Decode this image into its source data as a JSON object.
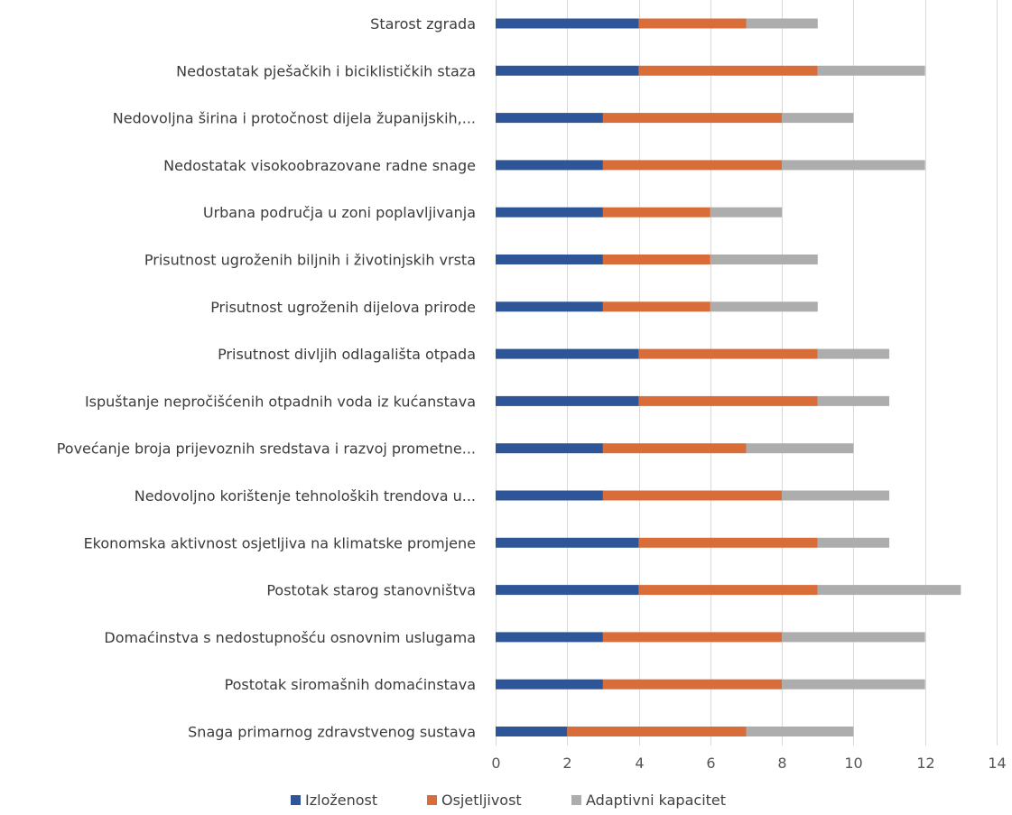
{
  "chart_data": {
    "type": "bar",
    "orientation": "horizontal",
    "stacked": true,
    "categories": [
      "Starost zgrada",
      "Nedostatak pješačkih i biciklističkih staza",
      "Nedovoljna širina i protočnost dijela županijskih,...",
      "Nedostatak visokoobrazovane radne snage",
      "Urbana područja u zoni poplavljivanja",
      "Prisutnost ugroženih biljnih i životinjskih vrsta",
      "Prisutnost ugroženih dijelova prirode",
      "Prisutnost divljih odlagališta otpada",
      "Ispuštanje nepročišćenih otpadnih voda iz kućanstava",
      "Povećanje broja prijevoznih sredstava i razvoj prometne...",
      "Nedovoljno korištenje tehnoloških trendova u...",
      "Ekonomska aktivnost osjetljiva na klimatske promjene",
      "Postotak starog stanovništva",
      "Domaćinstva s nedostupnošću osnovnim uslugama",
      "Postotak siromašnih domaćinstava",
      "Snaga primarnog zdravstvenog sustava"
    ],
    "series": [
      {
        "name": "Izloženost",
        "color": "#2e5597",
        "values": [
          4,
          4,
          3,
          3,
          3,
          3,
          3,
          4,
          4,
          3,
          3,
          4,
          4,
          3,
          3,
          2
        ]
      },
      {
        "name": "Osjetljivost",
        "color": "#d86d3a",
        "values": [
          3,
          5,
          5,
          5,
          3,
          3,
          3,
          5,
          5,
          4,
          5,
          5,
          5,
          5,
          5,
          5
        ]
      },
      {
        "name": "Adaptivni kapacitet",
        "color": "#adadad",
        "values": [
          2,
          3,
          2,
          4,
          2,
          3,
          3,
          2,
          2,
          3,
          3,
          2,
          4,
          4,
          4,
          3
        ]
      }
    ],
    "xlim": [
      0,
      14
    ],
    "xticks": [
      0,
      2,
      4,
      6,
      8,
      10,
      12,
      14
    ],
    "title": "",
    "xlabel": "",
    "ylabel": "",
    "grid": "vertical",
    "legend_position": "bottom"
  }
}
